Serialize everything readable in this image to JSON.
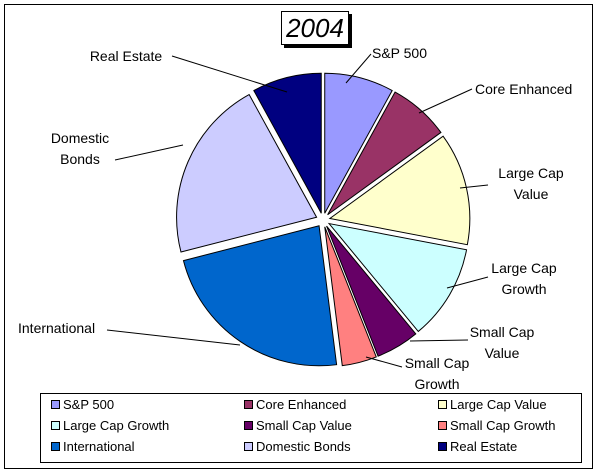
{
  "chart_data": {
    "type": "pie",
    "title": "2004",
    "exploded": true,
    "legend_position": "bottom",
    "slices": [
      {
        "name": "S&P 500",
        "value": 8,
        "color": "#9999ff"
      },
      {
        "name": "Core Enhanced",
        "value": 7,
        "color": "#993366"
      },
      {
        "name": "Large Cap Value",
        "value": 13,
        "color": "#ffffcc"
      },
      {
        "name": "Large Cap Growth",
        "value": 11,
        "color": "#ccffff"
      },
      {
        "name": "Small Cap Value",
        "value": 5,
        "color": "#660066"
      },
      {
        "name": "Small Cap Growth",
        "value": 4,
        "color": "#ff8080"
      },
      {
        "name": "International",
        "value": 23,
        "color": "#0066cc"
      },
      {
        "name": "Domestic Bonds",
        "value": 21,
        "color": "#ccccff"
      },
      {
        "name": "Real Estate",
        "value": 8,
        "color": "#000080"
      }
    ],
    "slice_labels": [
      [
        "S&P 500"
      ],
      [
        "Core Enhanced"
      ],
      [
        "Large Cap",
        "Value"
      ],
      [
        "Large Cap",
        "Growth"
      ],
      [
        "Small Cap",
        "Value"
      ],
      [
        "Small Cap",
        "Growth"
      ],
      [
        "International"
      ],
      [
        "Domestic",
        "Bonds"
      ],
      [
        "Real Estate"
      ]
    ]
  }
}
